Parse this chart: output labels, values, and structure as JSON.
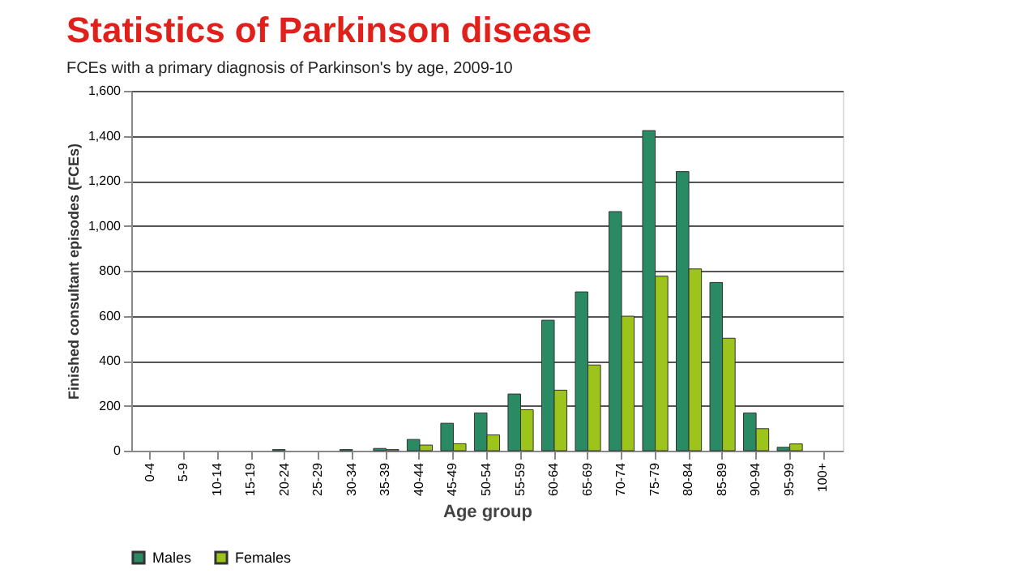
{
  "chart_data": {
    "type": "bar",
    "title": "Statistics of Parkinson disease",
    "subtitle": "FCEs with a primary diagnosis of Parkinson's by age, 2009-10",
    "xlabel": "Age group",
    "ylabel": "Finished consultant episodes (FCEs)",
    "categories": [
      "0-4",
      "5-9",
      "10-14",
      "15-19",
      "20-24",
      "25-29",
      "30-34",
      "35-39",
      "40-44",
      "45-49",
      "50-54",
      "55-59",
      "60-64",
      "65-69",
      "70-74",
      "75-79",
      "80-84",
      "85-89",
      "90-94",
      "95-99",
      "100+"
    ],
    "series": [
      {
        "name": "Males",
        "color": "#2a8a64",
        "values": [
          0,
          0,
          0,
          0,
          5,
          0,
          5,
          10,
          50,
          122,
          168,
          252,
          580,
          706,
          1063,
          1423,
          1241,
          748,
          168,
          15,
          0
        ]
      },
      {
        "name": "Females",
        "color": "#9dc41a",
        "values": [
          0,
          0,
          0,
          0,
          0,
          0,
          0,
          5,
          25,
          31,
          70,
          182,
          269,
          381,
          598,
          776,
          808,
          500,
          98,
          30,
          0
        ]
      }
    ],
    "ylim": [
      0,
      1600
    ],
    "yticks": [
      {
        "value": 0,
        "label": "0"
      },
      {
        "value": 200,
        "label": "200"
      },
      {
        "value": 400,
        "label": "400"
      },
      {
        "value": 600,
        "label": "600"
      },
      {
        "value": 800,
        "label": "800"
      },
      {
        "value": 1000,
        "label": "1,000"
      },
      {
        "value": 1200,
        "label": "1,200"
      },
      {
        "value": 1400,
        "label": "1,400"
      },
      {
        "value": 1600,
        "label": "1,600"
      }
    ],
    "grid": "y",
    "legend": "bottom"
  }
}
